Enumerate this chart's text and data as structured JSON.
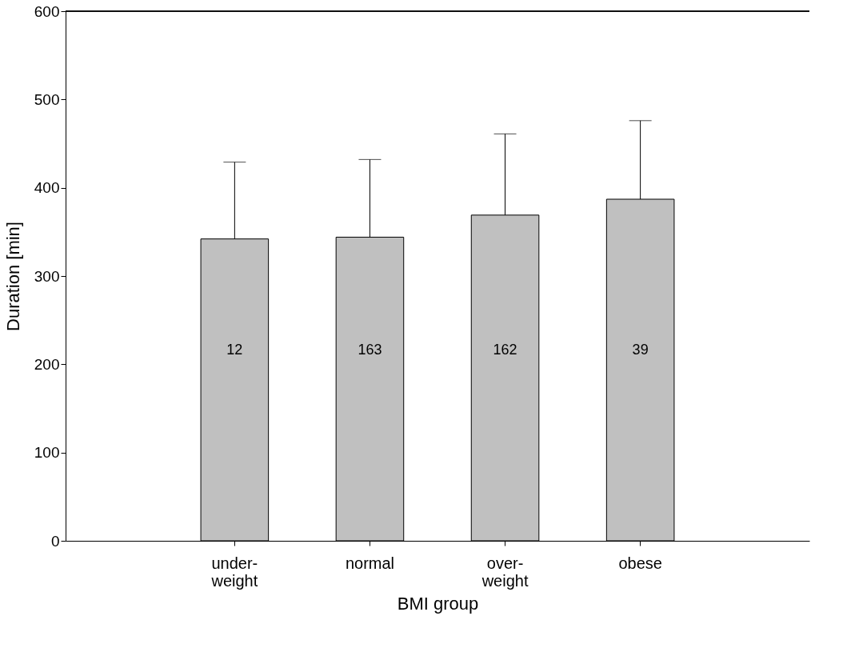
{
  "chart_data": {
    "type": "bar",
    "xlabel": "BMI group",
    "ylabel": "Duration [min]",
    "categories": [
      "under-weight",
      "normal",
      "over-weight",
      "obese"
    ],
    "values": [
      342,
      344,
      369,
      387
    ],
    "errors": [
      [
        342,
        429
      ],
      [
        344,
        432
      ],
      [
        369,
        461
      ],
      [
        387,
        476
      ]
    ],
    "annotations": [
      "12",
      "163",
      "162",
      "39"
    ],
    "color": "#c0c0c0",
    "ylim": [
      0,
      600
    ],
    "yticks": [
      0,
      100,
      200,
      300,
      400,
      500,
      600
    ],
    "grid": false
  }
}
